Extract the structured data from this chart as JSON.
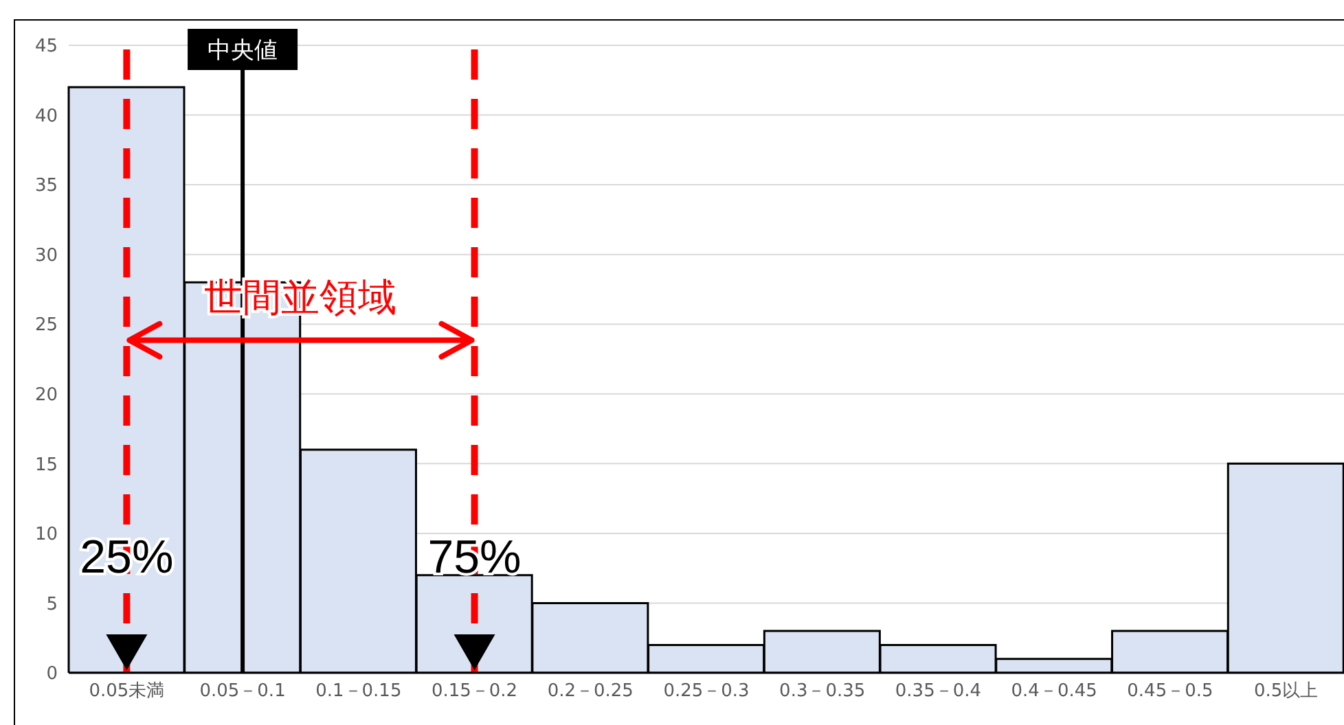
{
  "chart_data": {
    "type": "bar",
    "categories": [
      "0.05未満",
      "0.05－0.1",
      "0.1－0.15",
      "0.15－0.2",
      "0.2－0.25",
      "0.25－0.3",
      "0.3－0.35",
      "0.35－0.4",
      "0.4－0.45",
      "0.45－0.5",
      "0.5以上"
    ],
    "values": [
      42,
      28,
      16,
      7,
      5,
      2,
      3,
      2,
      1,
      3,
      15
    ],
    "color": "#dae3f3",
    "ylim": [
      0,
      45
    ],
    "yticks": [
      0,
      5,
      10,
      15,
      20,
      25,
      30,
      35,
      40,
      45
    ],
    "grid": "y",
    "ref_lines": [
      {
        "axis": "x",
        "value": "0.05未満",
        "label": "25%",
        "color": "#ff0000",
        "line_style": "dashed"
      },
      {
        "axis": "x",
        "value": "0.05－0.1",
        "label": "中央値",
        "color": "#000000",
        "line_style": "solid"
      },
      {
        "axis": "x",
        "value": "0.15－0.2",
        "label": "75%",
        "color": "#ff0000",
        "line_style": "dashed"
      }
    ],
    "annotations": [
      "世間並領域"
    ]
  }
}
